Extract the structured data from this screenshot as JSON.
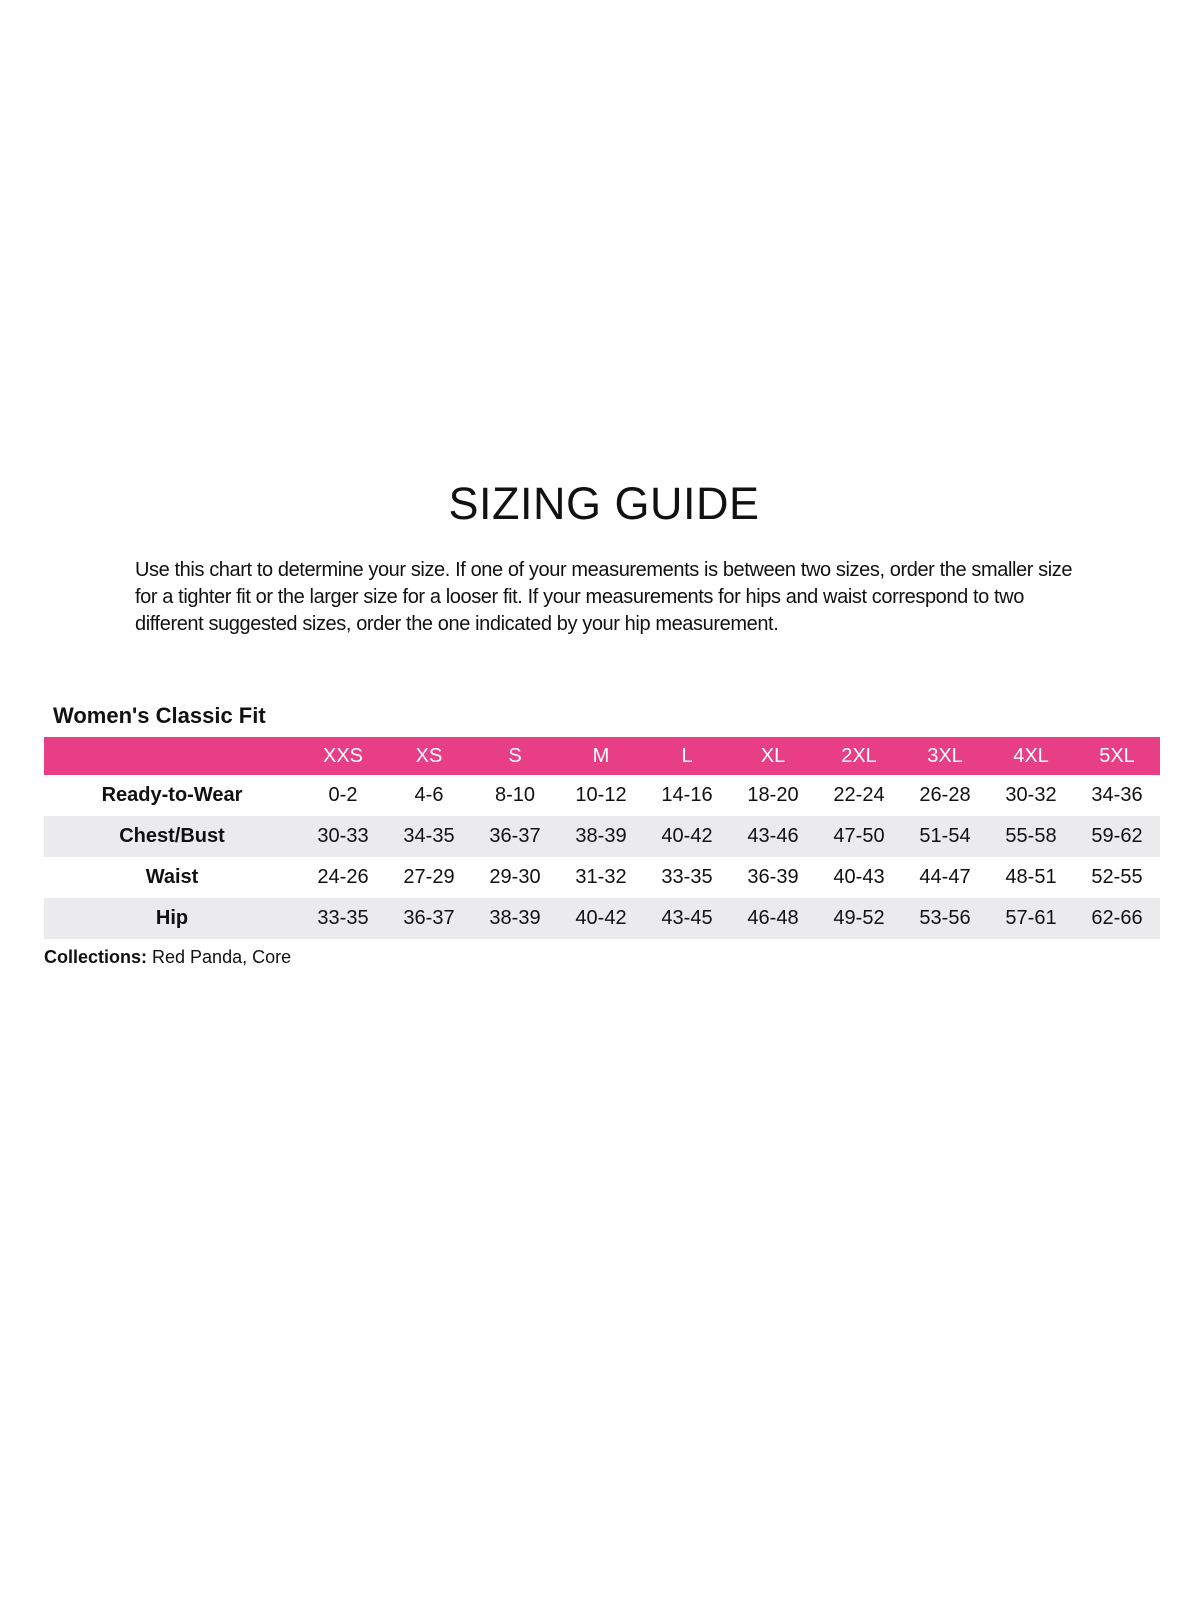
{
  "title": "SIZING GUIDE",
  "intro": "Use this chart to determine your size. If one of your measurements is between two sizes, order the smaller size for a tighter fit or the larger size for a looser fit. If your measurements for hips and waist correspond to two different suggested sizes, order the one indicated by your hip measurement.",
  "fit_title": "Women's Classic Fit",
  "colors": {
    "header_bg": "#e83e85",
    "alt_row_bg": "#ebebee"
  },
  "table": {
    "sizes": [
      "XXS",
      "XS",
      "S",
      "M",
      "L",
      "XL",
      "2XL",
      "3XL",
      "4XL",
      "5XL"
    ],
    "rows": [
      {
        "label": "Ready-to-Wear",
        "values": [
          "0-2",
          "4-6",
          "8-10",
          "10-12",
          "14-16",
          "18-20",
          "22-24",
          "26-28",
          "30-32",
          "34-36"
        ]
      },
      {
        "label": "Chest/Bust",
        "values": [
          "30-33",
          "34-35",
          "36-37",
          "38-39",
          "40-42",
          "43-46",
          "47-50",
          "51-54",
          "55-58",
          "59-62"
        ]
      },
      {
        "label": "Waist",
        "values": [
          "24-26",
          "27-29",
          "29-30",
          "31-32",
          "33-35",
          "36-39",
          "40-43",
          "44-47",
          "48-51",
          "52-55"
        ]
      },
      {
        "label": "Hip",
        "values": [
          "33-35",
          "36-37",
          "38-39",
          "40-42",
          "43-45",
          "46-48",
          "49-52",
          "53-56",
          "57-61",
          "62-66"
        ]
      }
    ]
  },
  "collections": {
    "label": "Collections:",
    "value": " Red Panda, Core"
  }
}
